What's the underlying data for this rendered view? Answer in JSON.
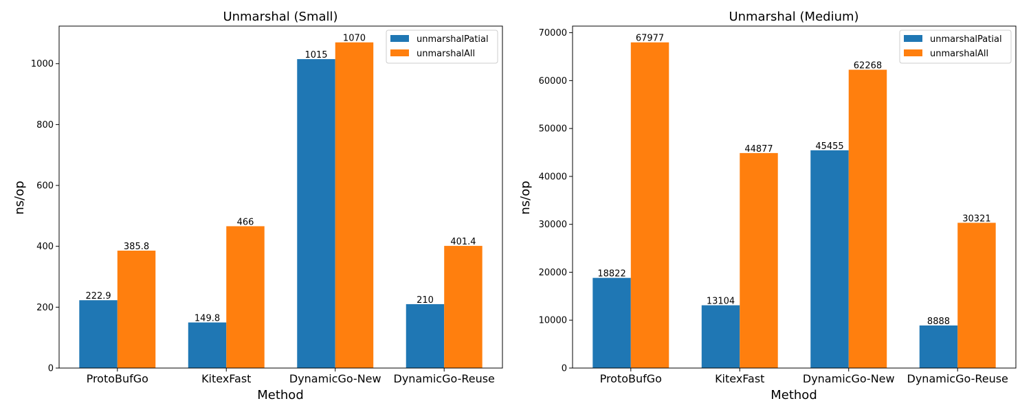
{
  "chart_data": [
    {
      "type": "bar",
      "title": "Unmarshal (Small)",
      "xlabel": "Method",
      "ylabel": "ns/op",
      "categories": [
        "ProtoBufGo",
        "KitexFast",
        "DynamicGo-New",
        "DynamicGo-Reuse"
      ],
      "series": [
        {
          "name": "unmarshalPatial",
          "values": [
            222.9,
            149.8,
            1015,
            210
          ],
          "labels": [
            "222.9",
            "149.8",
            "1015",
            "210"
          ],
          "color": "#1f77b4"
        },
        {
          "name": "unmarshalAll",
          "values": [
            385.8,
            466,
            1070,
            401.4
          ],
          "labels": [
            "385.8",
            "466",
            "1070",
            "401.4"
          ],
          "color": "#ff7f0e"
        }
      ],
      "ylim": [
        0,
        1123.5
      ],
      "yticks": [
        0,
        200,
        400,
        600,
        800,
        1000
      ],
      "ytick_labels": [
        "0",
        "200",
        "400",
        "600",
        "800",
        "1000"
      ],
      "legend_position": "top-right",
      "grid": false
    },
    {
      "type": "bar",
      "title": "Unmarshal (Medium)",
      "xlabel": "Method",
      "ylabel": "ns/op",
      "categories": [
        "ProtoBufGo",
        "KitexFast",
        "DynamicGo-New",
        "DynamicGo-Reuse"
      ],
      "series": [
        {
          "name": "unmarshalPatial",
          "values": [
            18822,
            13104,
            45455,
            8888
          ],
          "labels": [
            "18822",
            "13104",
            "45455",
            "8888"
          ],
          "color": "#1f77b4"
        },
        {
          "name": "unmarshalAll",
          "values": [
            67977,
            44877,
            62268,
            30321
          ],
          "labels": [
            "67977",
            "44877",
            "62268",
            "30321"
          ],
          "color": "#ff7f0e"
        }
      ],
      "ylim": [
        0,
        71376
      ],
      "yticks": [
        0,
        10000,
        20000,
        30000,
        40000,
        50000,
        60000,
        70000
      ],
      "ytick_labels": [
        "0",
        "10000",
        "20000",
        "30000",
        "40000",
        "50000",
        "60000",
        "70000"
      ],
      "legend_position": "top-right",
      "grid": false
    }
  ]
}
